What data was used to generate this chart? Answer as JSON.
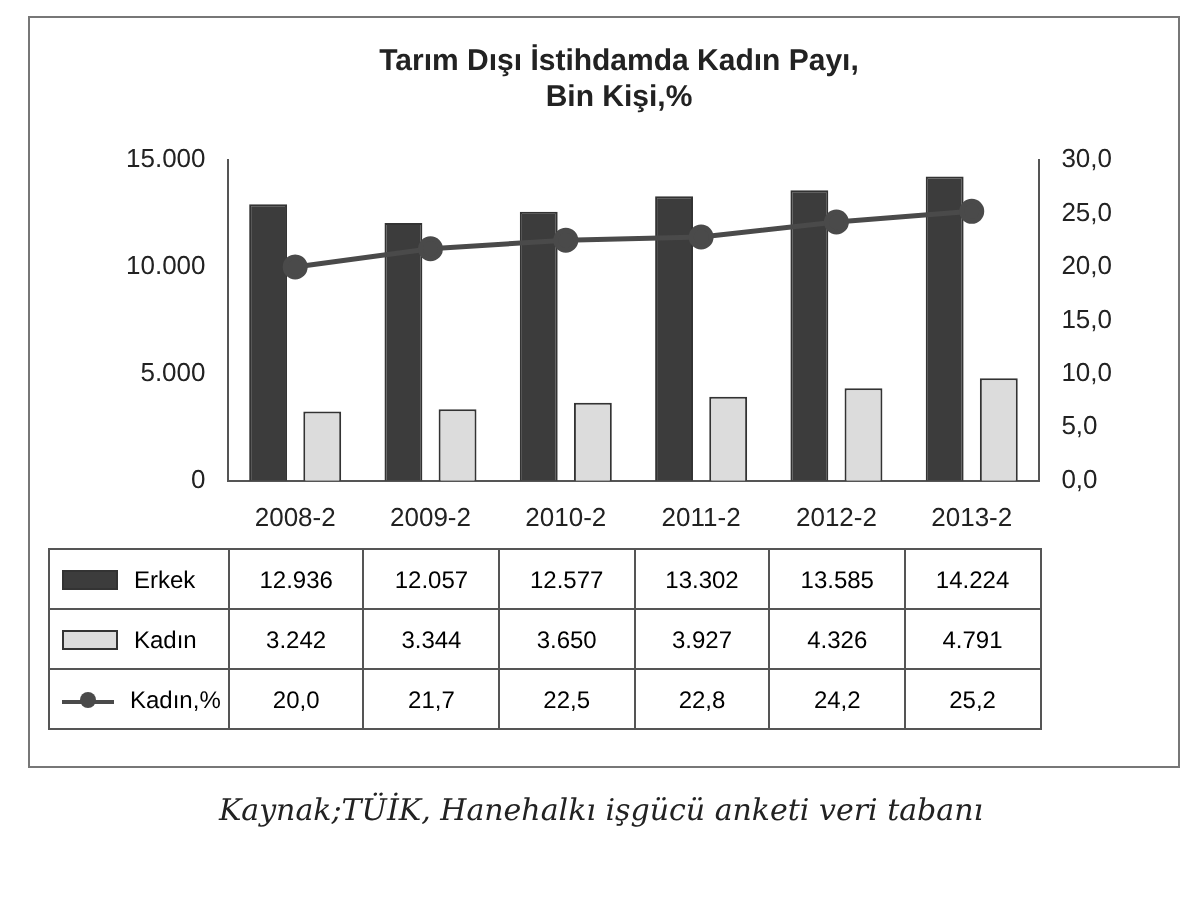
{
  "chart_data": {
    "type": "bar",
    "title": "Tarım Dışı İstihdamda Kadın Payı,\nBin Kişi,%",
    "categories": [
      "2008-2",
      "2009-2",
      "2010-2",
      "2011-2",
      "2012-2",
      "2013-2"
    ],
    "series": [
      {
        "name": "Erkek",
        "color": "#3c3c3c",
        "values": [
          12936,
          12057,
          12577,
          13302,
          13585,
          14224
        ],
        "value_labels": [
          "12.936",
          "12.057",
          "12.577",
          "13.302",
          "13.585",
          "14.224"
        ]
      },
      {
        "name": "Kadın",
        "color": "#dcdcdc",
        "values": [
          3242,
          3344,
          3650,
          3927,
          4326,
          4791
        ],
        "value_labels": [
          "3.242",
          "3.344",
          "3.650",
          "3.927",
          "4.326",
          "4.791"
        ]
      },
      {
        "name": "Kadın,%",
        "type": "line",
        "axis": "y2",
        "color": "#4a4a4a",
        "values": [
          20.0,
          21.7,
          22.5,
          22.8,
          24.2,
          25.2
        ],
        "value_labels": [
          "20,0",
          "21,7",
          "22,5",
          "22,8",
          "24,2",
          "25,2"
        ]
      }
    ],
    "ylim": [
      0,
      15000
    ],
    "yticks": [
      0,
      {
        "value": 5000,
        "label": "5.000"
      },
      {
        "value": 10000,
        "label": "10.000"
      },
      {
        "value": 15000,
        "label": "15.000"
      }
    ],
    "y2lim": [
      0,
      30
    ],
    "y2ticks": [
      {
        "value": 0,
        "label": "0,0"
      },
      {
        "value": 5,
        "label": "5,0"
      },
      {
        "value": 10,
        "label": "10,0"
      },
      {
        "value": 15,
        "label": "15,0"
      },
      {
        "value": 20,
        "label": "20,0"
      },
      {
        "value": 25,
        "label": "25,0"
      },
      {
        "value": 30,
        "label": "30,0"
      }
    ],
    "grid": false,
    "legend": "bottom",
    "marker": "circle",
    "line_style": "solid",
    "annotations": [
      "Kaynak;TÜİK, Hanehalkı işgücü anketi veri tabanı"
    ]
  }
}
